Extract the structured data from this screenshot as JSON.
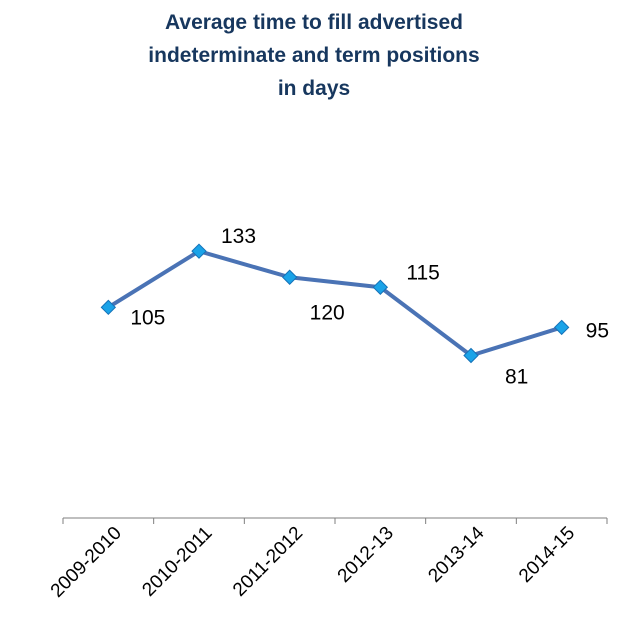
{
  "chart_data": {
    "type": "line",
    "title_lines": [
      "Average time to fill advertised",
      "indeterminate and term positions",
      "in days"
    ],
    "categories": [
      "2009-2010",
      "2010-2011",
      "2011-2012",
      "2012-13",
      "2013-14",
      "2014-15"
    ],
    "series": [
      {
        "values": [
          105,
          133,
          120,
          115,
          81,
          95
        ]
      }
    ],
    "data_labels": [
      "105",
      "133",
      "120",
      "115",
      "81",
      "95"
    ],
    "xlabel": "",
    "ylabel": "",
    "ylim": [
      0,
      160
    ],
    "y_axis_visible": false,
    "grid": false,
    "legend": "none",
    "colors": {
      "line": "#4a73b5",
      "marker": "#1aa3e8",
      "marker_edge": "#1572b8",
      "axis": "#7f7f7f",
      "title": "#17375e"
    }
  }
}
